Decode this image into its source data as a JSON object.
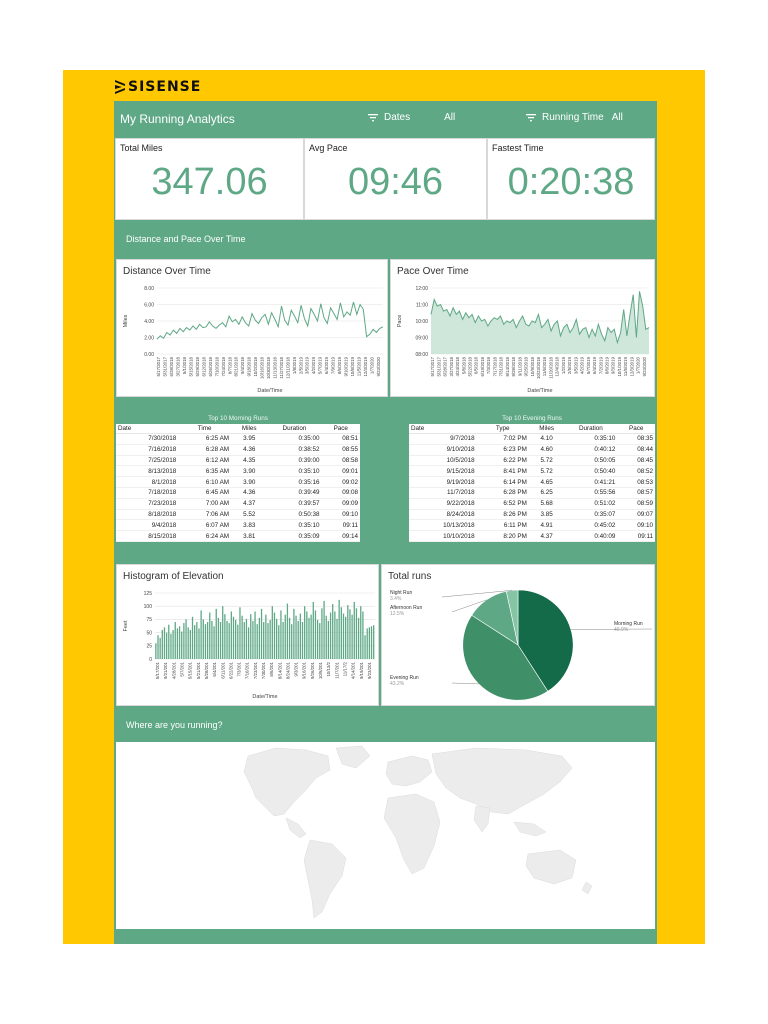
{
  "brand": {
    "logo_text": "SISENSE"
  },
  "header": {
    "title": "My Running Analytics",
    "filters": [
      {
        "label": "Dates",
        "value": "All"
      },
      {
        "label": "Running Time",
        "value": "All"
      }
    ]
  },
  "kpis": [
    {
      "label": "Total Miles",
      "value": "347.06"
    },
    {
      "label": "Avg Pace",
      "value": "09:46"
    },
    {
      "label": "Fastest Time",
      "value": "0:20:38"
    }
  ],
  "sections": {
    "distance_pace": "Distance and Pace Over Time",
    "where": "Where are you running?"
  },
  "colors": {
    "brand_yellow": "#ffc800",
    "accent_green": "#5ea886",
    "dark_green": "#136b4a"
  },
  "chart_data": [
    {
      "type": "line",
      "title": "Distance Over Time",
      "xlabel": "Date/Time",
      "ylabel": "Miles",
      "ylim": [
        0,
        8
      ],
      "yticks": [
        "0.00",
        "2.00",
        "4.00",
        "6.00",
        "8.00"
      ],
      "xtick_labels": [
        "5/17/2017",
        "5/31/2017",
        "6/28/2018",
        "3/27/2018",
        "5/1/2018",
        "5/15/2018",
        "5/29/2018",
        "6/12/2018",
        "6/26/2018",
        "7/10/2018",
        "7/24/2018",
        "8/7/2018",
        "8/21/2018",
        "9/4/2018",
        "9/18/2018",
        "10/2/2018",
        "10/16/2018",
        "10/30/2018",
        "11/13/2018",
        "11/27/2018",
        "12/11/2018",
        "1/8/2019",
        "2/5/2019",
        "3/5/2019",
        "4/2/2019",
        "5/7/2019",
        "6/4/2019",
        "7/9/2019",
        "8/6/2019",
        "9/10/2019",
        "10/8/2019",
        "11/5/2019",
        "12/3/2019",
        "1/7/2020",
        "9/23/2020"
      ],
      "grid": true,
      "values": [
        1.8,
        2.2,
        1.9,
        2.6,
        2.3,
        2.9,
        2.5,
        3.1,
        2.7,
        3.2,
        2.9,
        3.4,
        3.0,
        3.6,
        3.2,
        3.3,
        3.9,
        3.4,
        3.1,
        3.5,
        3.8,
        3.3,
        4.6,
        3.9,
        4.2,
        3.6,
        4.5,
        3.8,
        3.4,
        4.9,
        4.1,
        3.7,
        4.4,
        4.8,
        3.6,
        5.0,
        4.2,
        3.3,
        5.8,
        4.1,
        3.5,
        5.3,
        4.6,
        3.8,
        5.9,
        4.3,
        3.4,
        5.5,
        4.8,
        4.0,
        6.1,
        4.4,
        3.7,
        5.6,
        4.9,
        4.2,
        6.2,
        4.5,
        5.1,
        4.7,
        6.3,
        4.8,
        6.0,
        5.4,
        2.1,
        2.4,
        3.0,
        2.6,
        3.1,
        3.3
      ]
    },
    {
      "type": "area",
      "title": "Pace Over Time",
      "xlabel": "Date/Time",
      "ylabel": "Pace",
      "ylim": [
        8,
        12
      ],
      "yticks": [
        "08:00",
        "09:00",
        "10:00",
        "11:00",
        "12:00"
      ],
      "xtick_labels": [
        "5/17/2017",
        "5/31/2017",
        "6/28/2017",
        "3/27/2018",
        "4/24/2018",
        "5/8/2018",
        "5/22/2018",
        "6/5/2018",
        "6/19/2018",
        "7/3/2018",
        "7/17/2018",
        "7/31/2018",
        "8/14/2018",
        "8/28/2018",
        "9/11/2018",
        "9/25/2018",
        "10/9/2018",
        "10/23/2018",
        "11/6/2018",
        "11/20/2018",
        "12/4/2018",
        "1/2/2019",
        "2/5/2019",
        "3/5/2019",
        "4/2/2019",
        "5/7/2019",
        "6/4/2019",
        "7/2/2019",
        "8/6/2019",
        "9/3/2019",
        "10/1/2019",
        "11/5/2019",
        "12/3/2019",
        "1/7/2020",
        "9/23/2020"
      ],
      "grid": true,
      "values": [
        10.4,
        11.3,
        10.9,
        11.0,
        10.6,
        10.7,
        10.3,
        10.8,
        10.4,
        10.6,
        10.1,
        10.5,
        10.2,
        10.4,
        9.9,
        10.3,
        10.0,
        10.1,
        9.7,
        10.0,
        10.2,
        10.1,
        10.3,
        9.8,
        10.0,
        9.9,
        10.1,
        9.6,
        10.0,
        10.3,
        9.8,
        9.7,
        10.0,
        9.9,
        10.4,
        9.6,
        9.8,
        10.1,
        9.4,
        9.8,
        10.0,
        9.1,
        9.6,
        9.8,
        9.3,
        9.6,
        10.1,
        9.2,
        9.5,
        9.6,
        9.0,
        9.5,
        9.1,
        9.8,
        9.2,
        8.8,
        9.6,
        9.3,
        9.5,
        8.7,
        9.3,
        10.7,
        9.1,
        10.4,
        11.6,
        9.0,
        11.8,
        10.9,
        9.5,
        9.6
      ]
    },
    {
      "type": "bar",
      "title": "Histogram of Elevation",
      "xlabel": "Date/Time",
      "ylabel": "Feet",
      "ylim": [
        0,
        125
      ],
      "yticks": [
        "0",
        "25",
        "50",
        "75",
        "100",
        "125"
      ],
      "xtick_labels": [
        "5/17/201",
        "9/21/201",
        "4/28/201",
        "5/7/201",
        "5/15/201",
        "5/21/201",
        "5/28/201",
        "6/4/201",
        "6/11/201",
        "6/22/201",
        "7/3/201",
        "7/16/201",
        "7/23/201",
        "7/30/201",
        "8/6/201",
        "8/14/201",
        "8/24/201",
        "9/3/201",
        "9/16/201",
        "9/26/201",
        "10/5/201",
        "10/13/2",
        "11/7/201",
        "11/17/2",
        "4/14/201",
        "9/19/201",
        "9/23/201"
      ],
      "grid": true,
      "values": [
        30,
        45,
        40,
        55,
        60,
        50,
        65,
        48,
        55,
        70,
        58,
        62,
        52,
        68,
        75,
        60,
        55,
        80,
        64,
        70,
        58,
        92,
        75,
        66,
        70,
        88,
        72,
        62,
        95,
        78,
        70,
        100,
        85,
        72,
        68,
        90,
        80,
        74,
        65,
        98,
        82,
        70,
        76,
        60,
        85,
        72,
        90,
        66,
        78,
        95,
        70,
        84,
        68,
        74,
        100,
        88,
        76,
        64,
        92,
        70,
        84,
        105,
        78,
        66,
        95,
        82,
        72,
        86,
        70,
        100,
        90,
        78,
        84,
        108,
        92,
        74,
        68,
        96,
        110,
        82,
        72,
        88,
        104,
        90,
        76,
        112,
        98,
        86,
        80,
        102,
        94,
        84,
        108,
        96,
        78,
        100,
        90,
        45,
        58,
        60,
        62,
        64
      ]
    },
    {
      "type": "pie",
      "title": "Total runs",
      "slices": [
        {
          "name": "Morning Run",
          "pct_label": "40.9%",
          "value": 40.9,
          "color": "#136b4a"
        },
        {
          "name": "Evening Run",
          "pct_label": "43.2%",
          "value": 43.2,
          "color": "#3f8f69"
        },
        {
          "name": "Afternoon Run",
          "pct_label": "12.5%",
          "value": 12.5,
          "color": "#5ea886"
        },
        {
          "name": "Night Run",
          "pct_label": "3.4%",
          "value": 3.4,
          "color": "#86c4a6"
        }
      ]
    }
  ],
  "morning_table": {
    "caption": "Top 10 Morning Runs",
    "columns": [
      "Date",
      "Time",
      "Miles",
      "Duration",
      "Pace"
    ],
    "rows": [
      [
        "7/30/2018",
        "6:25 AM",
        "3.95",
        "0:35:00",
        "08:51"
      ],
      [
        "7/16/2018",
        "6:28 AM",
        "4.36",
        "0:38:52",
        "08:55"
      ],
      [
        "7/25/2018",
        "6:12 AM",
        "4.35",
        "0:39:00",
        "08:58"
      ],
      [
        "8/13/2018",
        "6:35 AM",
        "3.90",
        "0:35:10",
        "09:01"
      ],
      [
        "8/1/2018",
        "6:10 AM",
        "3.90",
        "0:35:16",
        "09:02"
      ],
      [
        "7/18/2018",
        "6:45 AM",
        "4.36",
        "0:39:49",
        "09:08"
      ],
      [
        "7/23/2018",
        "7:00 AM",
        "4.37",
        "0:39:57",
        "09:09"
      ],
      [
        "8/18/2018",
        "7:06 AM",
        "5.52",
        "0:50:38",
        "09:10"
      ],
      [
        "9/4/2018",
        "6:07 AM",
        "3.83",
        "0:35:10",
        "09:11"
      ],
      [
        "8/15/2018",
        "6:24 AM",
        "3.81",
        "0:35:09",
        "09:14"
      ]
    ]
  },
  "evening_table": {
    "caption": "Top 10 Evening Runs",
    "columns": [
      "Date",
      "Type",
      "Miles",
      "Duration",
      "Pace"
    ],
    "rows": [
      [
        "9/7/2018",
        "7:02 PM",
        "4.10",
        "0:35:10",
        "08:35"
      ],
      [
        "9/10/2018",
        "6:23 PM",
        "4.60",
        "0:40:12",
        "08:44"
      ],
      [
        "10/5/2018",
        "6:22 PM",
        "5.72",
        "0:50:05",
        "08:45"
      ],
      [
        "9/15/2018",
        "8:41 PM",
        "5.72",
        "0:50:40",
        "08:52"
      ],
      [
        "9/19/2018",
        "6:14 PM",
        "4.65",
        "0:41:21",
        "08:53"
      ],
      [
        "11/7/2018",
        "6:28 PM",
        "6.25",
        "0:55:56",
        "08:57"
      ],
      [
        "9/22/2018",
        "6:52 PM",
        "5.68",
        "0:51:02",
        "08:59"
      ],
      [
        "8/24/2018",
        "8:26 PM",
        "3.85",
        "0:35:07",
        "09:07"
      ],
      [
        "10/13/2018",
        "6:11 PM",
        "4.91",
        "0:45:02",
        "09:10"
      ],
      [
        "10/10/2018",
        "8:20 PM",
        "4.37",
        "0:40:09",
        "09:11"
      ]
    ]
  }
}
